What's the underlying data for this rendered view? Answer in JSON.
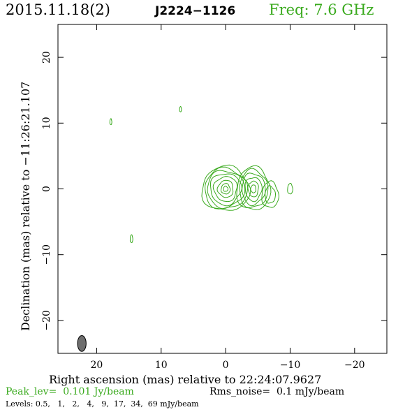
{
  "header": {
    "date": "2015.11.18(2)",
    "source": "J2224−1126",
    "freq_label": "Freq: 7.6 GHz"
  },
  "footer": {
    "peak": "Peak_lev=  0.101 Jy/beam",
    "rms": "Rms_noise=  0.1 mJy/beam",
    "levels": "Levels: 0.5,   1,   2,   4,   9,  17,  34,  69 mJy/beam"
  },
  "colors": {
    "contour": "#3aaa1e",
    "beam": "#6e6e6e",
    "text": "#000000"
  },
  "chart_data": {
    "type": "contour",
    "xlabel": "Right ascension (mas) relative to 22:24:07.9627",
    "ylabel": "Declination (mas) relative to −11:26:21.107",
    "xlim": [
      26,
      -25
    ],
    "ylim": [
      -25,
      25
    ],
    "x_reversed": true,
    "x_ticks": [
      20,
      10,
      0,
      -10,
      -20
    ],
    "x_tick_labels": [
      "20",
      "10",
      "0",
      "−10",
      "−20"
    ],
    "y_ticks": [
      20,
      10,
      0,
      -10,
      -20
    ],
    "y_tick_labels": [
      "20",
      "10",
      "0",
      "−10",
      "−20"
    ],
    "grid": false,
    "contour_levels_mJy": [
      0.5,
      1,
      2,
      4,
      9,
      17,
      34,
      69
    ],
    "peak_Jy_per_beam": 0.101,
    "rms_mJy_per_beam": 0.1,
    "beam": {
      "x": 22.3,
      "y": -23.5,
      "major_mas": 2.2,
      "minor_mas": 0.9,
      "pa_deg": 0
    },
    "components": [
      {
        "name": "core",
        "x": 0.0,
        "y": 0.0,
        "radii_mas": [
          [
            3.7,
            3.4
          ],
          [
            3.3,
            3.1
          ],
          [
            2.9,
            2.8
          ],
          [
            2.4,
            2.4
          ],
          [
            1.8,
            1.9
          ],
          [
            1.2,
            1.3
          ],
          [
            0.7,
            0.8
          ],
          [
            0.35,
            0.4
          ]
        ]
      },
      {
        "name": "jet_knot_1",
        "x": -4.3,
        "y": 0.0,
        "radii_mas": [
          [
            2.6,
            3.3
          ],
          [
            2.2,
            2.9
          ],
          [
            1.8,
            2.4
          ],
          [
            1.3,
            1.8
          ],
          [
            0.8,
            1.2
          ],
          [
            0.4,
            0.6
          ]
        ]
      },
      {
        "name": "jet_knot_2",
        "x": -6.9,
        "y": -0.9,
        "radii_mas": [
          [
            1.3,
            2.0
          ],
          [
            0.8,
            1.3
          ]
        ]
      },
      {
        "name": "jet_knot_3",
        "x": -10.0,
        "y": 0.0,
        "radii_mas": [
          [
            0.4,
            0.8
          ]
        ]
      },
      {
        "name": "isolated_blob_1",
        "x": 17.8,
        "y": 10.2,
        "radii_mas": [
          [
            0.15,
            0.45
          ]
        ]
      },
      {
        "name": "isolated_blob_2",
        "x": 7.0,
        "y": 12.1,
        "radii_mas": [
          [
            0.15,
            0.4
          ]
        ]
      },
      {
        "name": "isolated_blob_3",
        "x": 14.6,
        "y": -7.6,
        "radii_mas": [
          [
            0.2,
            0.6
          ]
        ]
      }
    ]
  }
}
